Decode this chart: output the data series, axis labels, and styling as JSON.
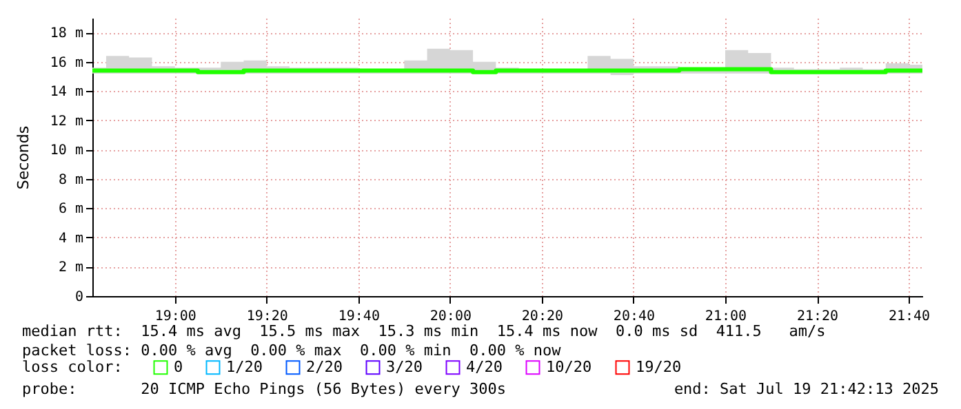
{
  "chart_data": {
    "type": "step",
    "ylabel": "Seconds",
    "legend_title": "loss color:",
    "legend": "bottom",
    "grid": true,
    "x": [
      "2025-07-19T18:42",
      "2025-07-19T18:45",
      "2025-07-19T18:50",
      "2025-07-19T18:55",
      "2025-07-19T19:00",
      "2025-07-19T19:05",
      "2025-07-19T19:10",
      "2025-07-19T19:15",
      "2025-07-19T19:20",
      "2025-07-19T19:25",
      "2025-07-19T19:30",
      "2025-07-19T19:35",
      "2025-07-19T19:40",
      "2025-07-19T19:45",
      "2025-07-19T19:50",
      "2025-07-19T19:55",
      "2025-07-19T20:00",
      "2025-07-19T20:05",
      "2025-07-19T20:10",
      "2025-07-19T20:15",
      "2025-07-19T20:20",
      "2025-07-19T20:25",
      "2025-07-19T20:30",
      "2025-07-19T20:35",
      "2025-07-19T20:40",
      "2025-07-19T20:45",
      "2025-07-19T20:50",
      "2025-07-19T20:55",
      "2025-07-19T21:00",
      "2025-07-19T21:05",
      "2025-07-19T21:10",
      "2025-07-19T21:15",
      "2025-07-19T21:20",
      "2025-07-19T21:25",
      "2025-07-19T21:30",
      "2025-07-19T21:35",
      "2025-07-19T21:40",
      "2025-07-19T21:43"
    ],
    "series": [
      {
        "name": "0",
        "color": "#20ff00",
        "values": [
          15.4,
          15.4,
          15.4,
          15.4,
          15.4,
          15.3,
          15.3,
          15.4,
          15.4,
          15.4,
          15.4,
          15.4,
          15.4,
          15.4,
          15.4,
          15.4,
          15.4,
          15.3,
          15.4,
          15.4,
          15.4,
          15.4,
          15.4,
          15.4,
          15.4,
          15.4,
          15.5,
          15.5,
          15.5,
          15.5,
          15.3,
          15.3,
          15.3,
          15.3,
          15.3,
          15.4,
          15.4,
          15.4
        ],
        "upper": [
          15.6,
          16.4,
          16.3,
          15.7,
          15.6,
          15.6,
          16.0,
          16.1,
          15.7,
          15.6,
          15.6,
          15.6,
          15.5,
          15.5,
          16.1,
          16.9,
          16.8,
          16.0,
          15.6,
          15.5,
          15.5,
          15.5,
          16.4,
          16.2,
          15.7,
          15.7,
          15.5,
          15.5,
          16.8,
          16.6,
          15.6,
          15.5,
          15.5,
          15.6,
          15.5,
          15.9,
          15.8,
          15.8
        ],
        "lower": [
          15.2,
          15.2,
          15.2,
          15.2,
          15.2,
          15.2,
          15.2,
          15.2,
          15.2,
          15.2,
          15.2,
          15.2,
          15.2,
          15.2,
          15.2,
          15.2,
          15.2,
          15.2,
          15.2,
          15.2,
          15.2,
          15.2,
          15.2,
          15.1,
          15.2,
          15.2,
          15.2,
          15.2,
          15.2,
          15.2,
          15.2,
          15.2,
          15.2,
          15.2,
          15.2,
          15.2,
          15.2,
          15.2
        ]
      },
      {
        "name": "1/20",
        "color": "#00b8ff",
        "values": [
          null,
          null,
          null,
          null,
          null,
          null,
          null,
          null,
          null,
          null,
          null,
          null,
          null,
          null,
          null,
          null,
          null,
          null,
          null,
          null,
          null,
          null,
          null,
          null,
          null,
          null,
          null,
          null,
          null,
          null,
          null,
          null,
          null,
          null,
          null,
          null,
          null,
          null
        ]
      },
      {
        "name": "2/20",
        "color": "#0059ff",
        "values": [
          null,
          null,
          null,
          null,
          null,
          null,
          null,
          null,
          null,
          null,
          null,
          null,
          null,
          null,
          null,
          null,
          null,
          null,
          null,
          null,
          null,
          null,
          null,
          null,
          null,
          null,
          null,
          null,
          null,
          null,
          null,
          null,
          null,
          null,
          null,
          null,
          null,
          null
        ]
      },
      {
        "name": "3/20",
        "color": "#5e00ff",
        "values": [
          null,
          null,
          null,
          null,
          null,
          null,
          null,
          null,
          null,
          null,
          null,
          null,
          null,
          null,
          null,
          null,
          null,
          null,
          null,
          null,
          null,
          null,
          null,
          null,
          null,
          null,
          null,
          null,
          null,
          null,
          null,
          null,
          null,
          null,
          null,
          null,
          null,
          null
        ]
      },
      {
        "name": "4/20",
        "color": "#7e00ff",
        "values": [
          null,
          null,
          null,
          null,
          null,
          null,
          null,
          null,
          null,
          null,
          null,
          null,
          null,
          null,
          null,
          null,
          null,
          null,
          null,
          null,
          null,
          null,
          null,
          null,
          null,
          null,
          null,
          null,
          null,
          null,
          null,
          null,
          null,
          null,
          null,
          null,
          null,
          null
        ]
      },
      {
        "name": "10/20",
        "color": "#dd00ff",
        "values": [
          null,
          null,
          null,
          null,
          null,
          null,
          null,
          null,
          null,
          null,
          null,
          null,
          null,
          null,
          null,
          null,
          null,
          null,
          null,
          null,
          null,
          null,
          null,
          null,
          null,
          null,
          null,
          null,
          null,
          null,
          null,
          null,
          null,
          null,
          null,
          null,
          null,
          null
        ]
      },
      {
        "name": "19/20",
        "color": "#ff0000",
        "values": [
          null,
          null,
          null,
          null,
          null,
          null,
          null,
          null,
          null,
          null,
          null,
          null,
          null,
          null,
          null,
          null,
          null,
          null,
          null,
          null,
          null,
          null,
          null,
          null,
          null,
          null,
          null,
          null,
          null,
          null,
          null,
          null,
          null,
          null,
          null,
          null,
          null,
          null
        ]
      }
    ],
    "xlim": [
      "2025-07-19T18:42",
      "2025-07-19T21:43"
    ],
    "xticks": [
      {
        "value": "2025-07-19T19:00",
        "label": "19:00"
      },
      {
        "value": "2025-07-19T19:20",
        "label": "19:20"
      },
      {
        "value": "2025-07-19T19:40",
        "label": "19:40"
      },
      {
        "value": "2025-07-19T20:00",
        "label": "20:00"
      },
      {
        "value": "2025-07-19T20:20",
        "label": "20:20"
      },
      {
        "value": "2025-07-19T20:40",
        "label": "20:40"
      },
      {
        "value": "2025-07-19T21:00",
        "label": "21:00"
      },
      {
        "value": "2025-07-19T21:20",
        "label": "21:20"
      },
      {
        "value": "2025-07-19T21:40",
        "label": "21:40"
      }
    ],
    "ylim": [
      0,
      19
    ],
    "yticks": [
      0,
      {
        "value": 2,
        "label": "2 m"
      },
      {
        "value": 4,
        "label": "4 m"
      },
      {
        "value": 6,
        "label": "6 m"
      },
      {
        "value": 8,
        "label": "8 m"
      },
      {
        "value": 10,
        "label": "10 m"
      },
      {
        "value": 12,
        "label": "12 m"
      },
      {
        "value": 14,
        "label": "14 m"
      },
      {
        "value": 16,
        "label": "16 m"
      },
      {
        "value": 18,
        "label": "18 m"
      }
    ],
    "annotations": [
      "median rtt:  15.4 ms avg  15.5 ms max  15.3 ms min  15.4 ms now  0.0 ms sd  411.5   am/s",
      "packet loss: 0.00 % avg  0.00 % max  0.00 % min  0.00 % now",
      "probe:       20 ICMP Echo Pings (56 Bytes) every 300s",
      "end: Sat Jul 19 21:42:13 2025"
    ]
  }
}
